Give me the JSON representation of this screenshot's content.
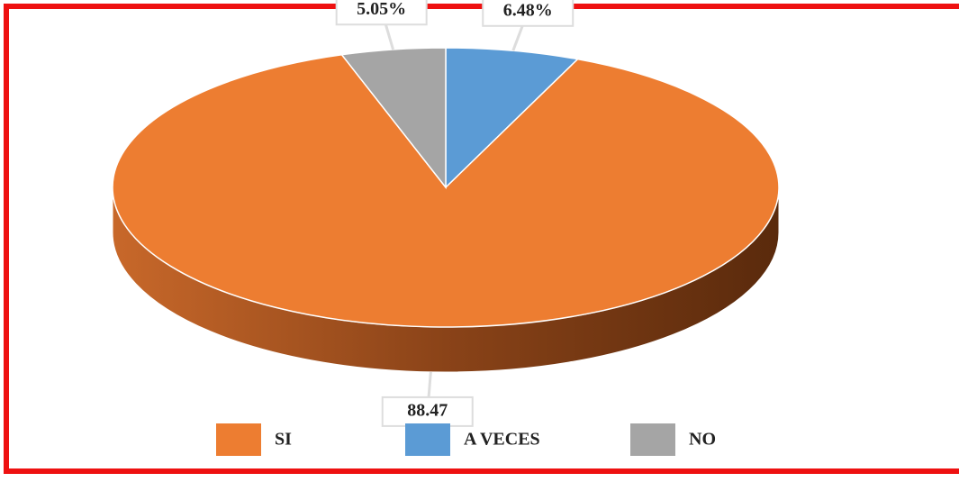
{
  "chart_data": {
    "type": "pie",
    "categories": [
      "SI",
      "A VECES",
      "NO"
    ],
    "values": [
      88.47,
      6.48,
      5.05
    ],
    "value_labels": [
      "88.47",
      "6.48%",
      "5.05%"
    ],
    "colors": [
      "#ed7d31",
      "#5b9bd5",
      "#a5a5a5"
    ],
    "legend": "bottom"
  }
}
